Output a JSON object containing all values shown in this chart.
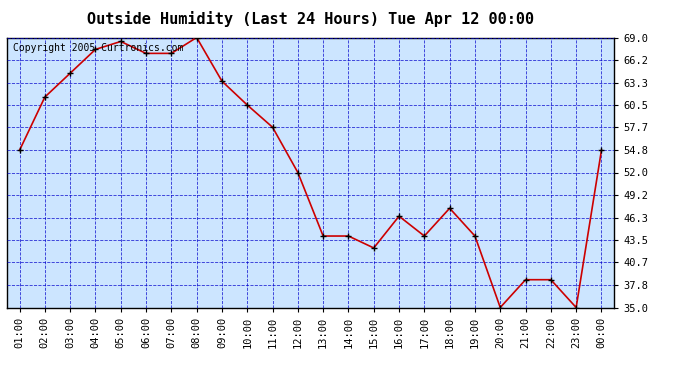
{
  "title": "Outside Humidity (Last 24 Hours) Tue Apr 12 00:00",
  "copyright": "Copyright 2005 Curtronics.com",
  "x_labels": [
    "01:00",
    "02:00",
    "03:00",
    "04:00",
    "05:00",
    "06:00",
    "07:00",
    "08:00",
    "09:00",
    "10:00",
    "11:00",
    "12:00",
    "13:00",
    "14:00",
    "15:00",
    "16:00",
    "17:00",
    "18:00",
    "19:00",
    "20:00",
    "21:00",
    "22:00",
    "23:00",
    "00:00"
  ],
  "y_values": [
    54.8,
    61.5,
    64.5,
    67.5,
    68.5,
    67.0,
    67.0,
    69.0,
    63.5,
    60.5,
    57.7,
    52.0,
    44.0,
    44.0,
    42.5,
    46.5,
    44.0,
    47.5,
    44.0,
    35.0,
    38.5,
    38.5,
    35.0,
    54.8
  ],
  "y_ticks": [
    35.0,
    37.8,
    40.7,
    43.5,
    46.3,
    49.2,
    52.0,
    54.8,
    57.7,
    60.5,
    63.3,
    66.2,
    69.0
  ],
  "ylim": [
    35.0,
    69.0
  ],
  "line_color": "#cc0000",
  "marker_color": "#000000",
  "bg_color": "#cce5ff",
  "plot_bg": "#ffffff",
  "grid_color": "#0000cc",
  "title_fontsize": 11,
  "copyright_fontsize": 7,
  "tick_fontsize": 7.5
}
